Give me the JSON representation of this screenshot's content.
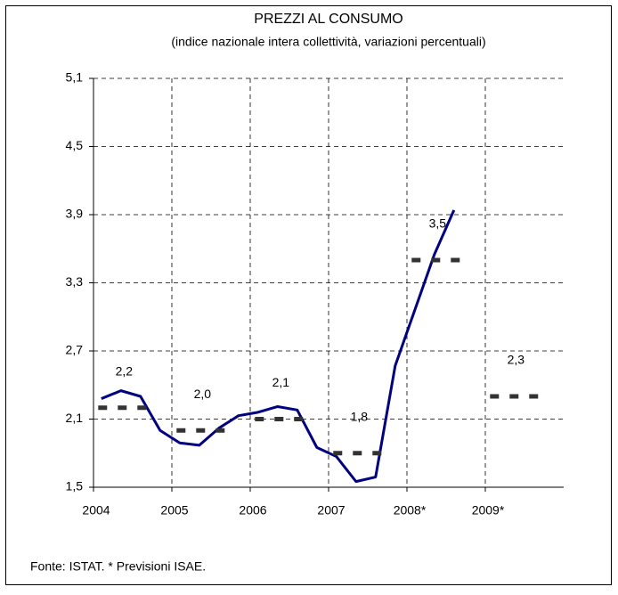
{
  "chart_data": {
    "type": "line",
    "title": "PREZZI AL CONSUMO",
    "subtitle": "(indice nazionale intera collettività, variazioni percentuali)",
    "xlim": [
      2004,
      2010
    ],
    "xticks": [
      2004,
      2005,
      2006,
      2007,
      {
        "value": 2008,
        "label": "2008*"
      },
      {
        "value": 2009,
        "label": "2009*"
      }
    ],
    "ylim": [
      1.5,
      5.1
    ],
    "yticks": [
      {
        "value": 1.5,
        "label": "1,5"
      },
      {
        "value": 2.1,
        "label": "2,1"
      },
      {
        "value": 2.7,
        "label": "2,7"
      },
      {
        "value": 3.3,
        "label": "3,3"
      },
      {
        "value": 3.9,
        "label": "3,9"
      },
      {
        "value": 4.5,
        "label": "4,5"
      },
      {
        "value": 5.1,
        "label": "5,1"
      }
    ],
    "grid": true,
    "series": [
      {
        "color": "#000080",
        "x": [
          2004.1,
          2004.35,
          2004.6,
          2004.85,
          2005.1,
          2005.35,
          2005.6,
          2005.85,
          2006.1,
          2006.35,
          2006.6,
          2006.85,
          2007.1,
          2007.35,
          2007.6,
          2007.85,
          2008.1,
          2008.35,
          2008.6
        ],
        "values": [
          2.28,
          2.35,
          2.3,
          2.0,
          1.89,
          1.87,
          2.02,
          2.13,
          2.16,
          2.21,
          2.18,
          1.85,
          1.77,
          1.55,
          1.59,
          2.57,
          3.06,
          3.55,
          3.94
        ]
      },
      {
        "color": "#333333",
        "style": "dashed",
        "x": [
          2004,
          2005,
          2006,
          2007,
          2008,
          2009
        ],
        "values": [
          2.2,
          2.0,
          2.1,
          1.8,
          3.5,
          2.3
        ],
        "value_labels": [
          "2,2",
          "2,0",
          "2,1",
          "1,8",
          "3,5",
          "2,3"
        ]
      }
    ]
  },
  "footer": "Fonte: ISTAT. * Previsioni ISAE."
}
